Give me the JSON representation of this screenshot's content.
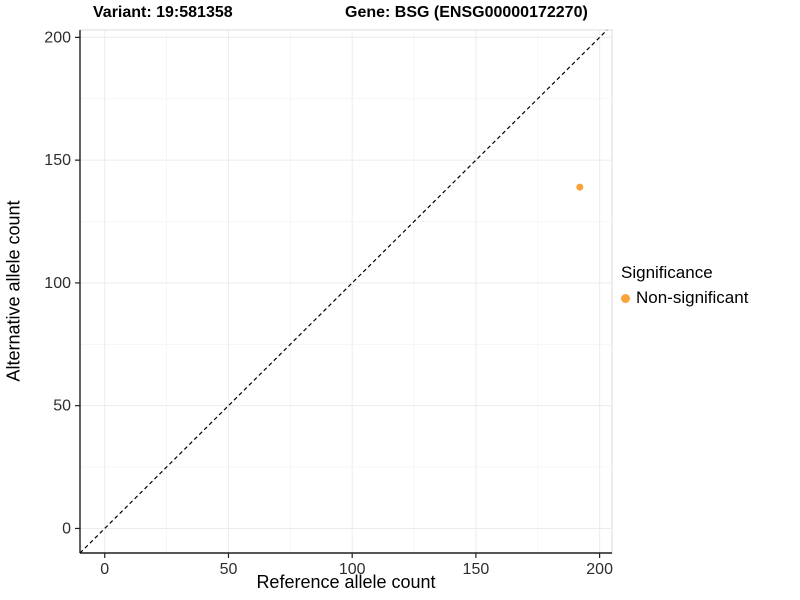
{
  "titles": {
    "variant": "Variant: 19:581358",
    "gene": "Gene: BSG (ENSG00000172270)"
  },
  "axes": {
    "x_label": "Reference allele count",
    "y_label": "Alternative allele count"
  },
  "legend": {
    "title": "Significance",
    "items": [
      {
        "label": "Non-significant",
        "color": "#F9A33B"
      }
    ]
  },
  "chart_data": {
    "type": "scatter",
    "title": "Variant: 19:581358 — Gene: BSG (ENSG00000172270)",
    "xlabel": "Reference allele count",
    "ylabel": "Alternative allele count",
    "xlim": [
      -10,
      205
    ],
    "ylim": [
      -10,
      203
    ],
    "x_ticks": [
      0,
      50,
      100,
      150,
      200
    ],
    "y_ticks": [
      0,
      50,
      100,
      150,
      200
    ],
    "x_minor_ticks": [
      25,
      75,
      125,
      175
    ],
    "y_minor_ticks": [
      25,
      75,
      125,
      175
    ],
    "grid": true,
    "legend_position": "right",
    "series": [
      {
        "name": "Non-significant",
        "color": "#F9A33B",
        "points": [
          {
            "x": 192,
            "y": 139
          }
        ],
        "point_radius": 3.5
      }
    ],
    "reference_line": {
      "type": "identity",
      "from": [
        -10,
        -10
      ],
      "to": [
        203,
        203
      ],
      "style": "dashed",
      "color": "#000000"
    },
    "colors": {
      "panel_background": "#FFFFFF",
      "panel_border": "#DBDBDB",
      "grid_major": "#ECECEC",
      "grid_minor": "#F4F4F4",
      "axis": "#1F1F1F",
      "tick_label": "#2E2E2E"
    }
  }
}
